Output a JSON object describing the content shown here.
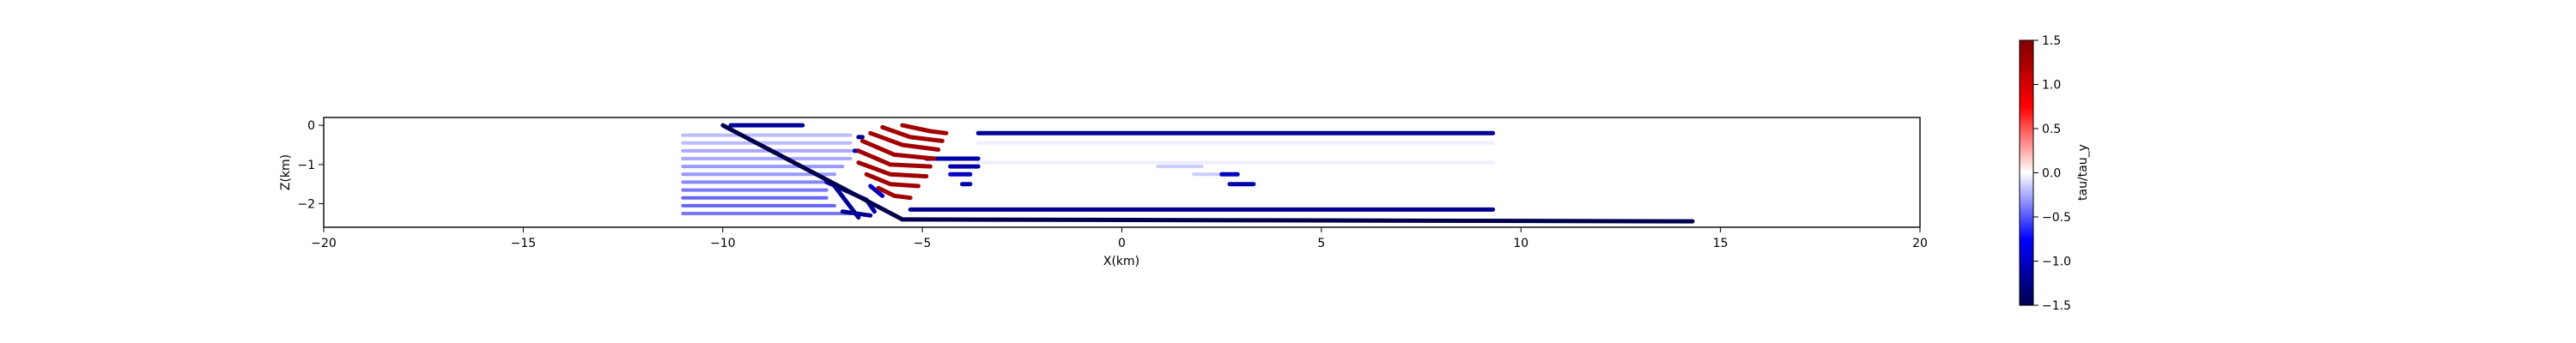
{
  "chart_data": {
    "type": "scatter",
    "xlabel": "X(km)",
    "ylabel": "Z(km)",
    "xlim": [
      -20,
      20
    ],
    "ylim": [
      -2.6,
      0.2
    ],
    "xticks": [
      -20,
      -15,
      -10,
      -5,
      0,
      5,
      10,
      15,
      20
    ],
    "yticks": [
      0,
      -1,
      -2
    ],
    "colorbar": {
      "label": "tau/tau_y",
      "min": -1.5,
      "max": 1.5,
      "ticks": [
        "1.5",
        "1.0",
        "0.5",
        "0.0",
        "-0.5",
        "-1.0",
        "-1.5"
      ],
      "colormap": "seismic"
    },
    "traces": [
      {
        "id": "fault-dip",
        "value": -1.5,
        "points": [
          [
            -10.0,
            0.0
          ],
          [
            -5.5,
            -2.4
          ]
        ]
      },
      {
        "id": "detachment",
        "value": -1.5,
        "points": [
          [
            -5.5,
            -2.4
          ],
          [
            14.3,
            -2.45
          ]
        ]
      },
      {
        "id": "flat-top",
        "value": -1.2,
        "points": [
          [
            -3.6,
            -0.2
          ],
          [
            9.3,
            -0.2
          ]
        ]
      },
      {
        "id": "flat-mid",
        "value": -1.2,
        "points": [
          [
            -5.3,
            -2.15
          ],
          [
            9.3,
            -2.15
          ]
        ]
      },
      {
        "id": "top-left",
        "value": -1.2,
        "points": [
          [
            -9.8,
            0.0
          ],
          [
            -8.0,
            0.0
          ]
        ]
      },
      {
        "id": "ramp-low",
        "value": -1.1,
        "points": [
          [
            -7.4,
            -1.45
          ],
          [
            -6.4,
            -1.9
          ],
          [
            -6.2,
            -2.2
          ]
        ]
      },
      {
        "id": "ramp-lower",
        "value": -1.2,
        "points": [
          [
            -7.2,
            -1.55
          ],
          [
            -6.6,
            -2.35
          ]
        ]
      },
      {
        "id": "ramp-mid",
        "value": -1.0,
        "points": [
          [
            -6.3,
            -1.55
          ],
          [
            -6.0,
            -1.8
          ]
        ]
      },
      {
        "id": "ramp-base",
        "value": -1.2,
        "points": [
          [
            -7.0,
            -2.2
          ],
          [
            -6.3,
            -2.3
          ]
        ]
      },
      {
        "id": "seg-1",
        "value": -1.1,
        "points": [
          [
            -4.9,
            -0.85
          ],
          [
            -3.6,
            -0.85
          ]
        ]
      },
      {
        "id": "seg-2",
        "value": -1.1,
        "points": [
          [
            -4.3,
            -1.05
          ],
          [
            -3.6,
            -1.05
          ]
        ]
      },
      {
        "id": "seg-3",
        "value": -1.0,
        "points": [
          [
            -4.3,
            -1.25
          ],
          [
            -3.8,
            -1.25
          ]
        ]
      },
      {
        "id": "seg-4",
        "value": -1.1,
        "points": [
          [
            -4.0,
            -1.5
          ],
          [
            -3.8,
            -1.5
          ]
        ]
      },
      {
        "id": "seg-5",
        "value": -1.0,
        "points": [
          [
            2.5,
            -1.25
          ],
          [
            2.9,
            -1.25
          ]
        ]
      },
      {
        "id": "seg-6",
        "value": -1.1,
        "points": [
          [
            2.7,
            -1.5
          ],
          [
            3.3,
            -1.5
          ]
        ]
      },
      {
        "id": "dot-1",
        "value": -1.2,
        "points": [
          [
            -6.6,
            -0.3
          ],
          [
            -6.5,
            -0.3
          ]
        ]
      },
      {
        "id": "dot-2",
        "value": -1.0,
        "points": [
          [
            -6.7,
            -0.65
          ],
          [
            -6.6,
            -0.65
          ]
        ]
      },
      {
        "id": "arc-1",
        "value": 1.3,
        "points": [
          [
            -5.5,
            0.0
          ],
          [
            -4.8,
            -0.15
          ],
          [
            -4.4,
            -0.2
          ]
        ]
      },
      {
        "id": "arc-2",
        "value": 1.3,
        "points": [
          [
            -6.0,
            -0.05
          ],
          [
            -5.3,
            -0.3
          ],
          [
            -4.5,
            -0.4
          ]
        ]
      },
      {
        "id": "arc-3",
        "value": 1.3,
        "points": [
          [
            -6.3,
            -0.2
          ],
          [
            -5.5,
            -0.5
          ],
          [
            -4.6,
            -0.62
          ]
        ]
      },
      {
        "id": "arc-4",
        "value": 1.3,
        "points": [
          [
            -6.5,
            -0.4
          ],
          [
            -5.7,
            -0.75
          ],
          [
            -4.7,
            -0.85
          ]
        ]
      },
      {
        "id": "arc-5",
        "value": 1.3,
        "points": [
          [
            -6.6,
            -0.65
          ],
          [
            -5.8,
            -1.0
          ],
          [
            -4.8,
            -1.05
          ]
        ]
      },
      {
        "id": "arc-6",
        "value": 1.3,
        "points": [
          [
            -6.6,
            -0.95
          ],
          [
            -5.8,
            -1.25
          ],
          [
            -4.9,
            -1.3
          ]
        ]
      },
      {
        "id": "arc-7",
        "value": 1.3,
        "points": [
          [
            -6.4,
            -1.25
          ],
          [
            -5.8,
            -1.5
          ],
          [
            -5.1,
            -1.55
          ]
        ]
      },
      {
        "id": "arc-8",
        "value": 1.3,
        "points": [
          [
            -6.1,
            -1.6
          ],
          [
            -5.7,
            -1.8
          ],
          [
            -5.3,
            -1.85
          ]
        ]
      },
      {
        "id": "bg-1",
        "value": -0.2,
        "points": [
          [
            -11.0,
            -0.25
          ],
          [
            -6.8,
            -0.25
          ]
        ]
      },
      {
        "id": "bg-2",
        "value": -0.2,
        "points": [
          [
            -11.0,
            -0.45
          ],
          [
            -6.8,
            -0.45
          ]
        ]
      },
      {
        "id": "bg-3",
        "value": -0.25,
        "points": [
          [
            -11.0,
            -0.65
          ],
          [
            -6.8,
            -0.65
          ]
        ]
      },
      {
        "id": "bg-4",
        "value": -0.25,
        "points": [
          [
            -11.0,
            -0.85
          ],
          [
            -6.8,
            -0.85
          ]
        ]
      },
      {
        "id": "bg-5",
        "value": -0.3,
        "points": [
          [
            -11.0,
            -1.05
          ],
          [
            -7.0,
            -1.05
          ]
        ]
      },
      {
        "id": "bg-6",
        "value": -0.3,
        "points": [
          [
            -11.0,
            -1.25
          ],
          [
            -7.2,
            -1.25
          ]
        ]
      },
      {
        "id": "bg-7",
        "value": -0.35,
        "points": [
          [
            -11.0,
            -1.45
          ],
          [
            -7.4,
            -1.45
          ]
        ]
      },
      {
        "id": "bg-8",
        "value": -0.4,
        "points": [
          [
            -11.0,
            -1.65
          ],
          [
            -7.4,
            -1.65
          ]
        ]
      },
      {
        "id": "bg-9",
        "value": -0.45,
        "points": [
          [
            -11.0,
            -1.85
          ],
          [
            -7.4,
            -1.85
          ]
        ]
      },
      {
        "id": "bg-10",
        "value": -0.45,
        "points": [
          [
            -11.0,
            -2.05
          ],
          [
            -7.2,
            -2.05
          ]
        ]
      },
      {
        "id": "bg-11",
        "value": -0.4,
        "points": [
          [
            -11.0,
            -2.25
          ],
          [
            -6.8,
            -2.25
          ]
        ]
      },
      {
        "id": "bg-r1",
        "value": -0.05,
        "points": [
          [
            -3.6,
            -0.45
          ],
          [
            9.3,
            -0.45
          ]
        ]
      },
      {
        "id": "bg-r2",
        "value": -0.05,
        "points": [
          [
            -3.6,
            -0.95
          ],
          [
            9.3,
            -0.95
          ]
        ]
      },
      {
        "id": "bg-r3",
        "value": -0.15,
        "points": [
          [
            0.9,
            -1.05
          ],
          [
            2.0,
            -1.05
          ]
        ]
      },
      {
        "id": "bg-r4",
        "value": -0.15,
        "points": [
          [
            1.8,
            -1.25
          ],
          [
            2.5,
            -1.25
          ]
        ]
      }
    ]
  }
}
